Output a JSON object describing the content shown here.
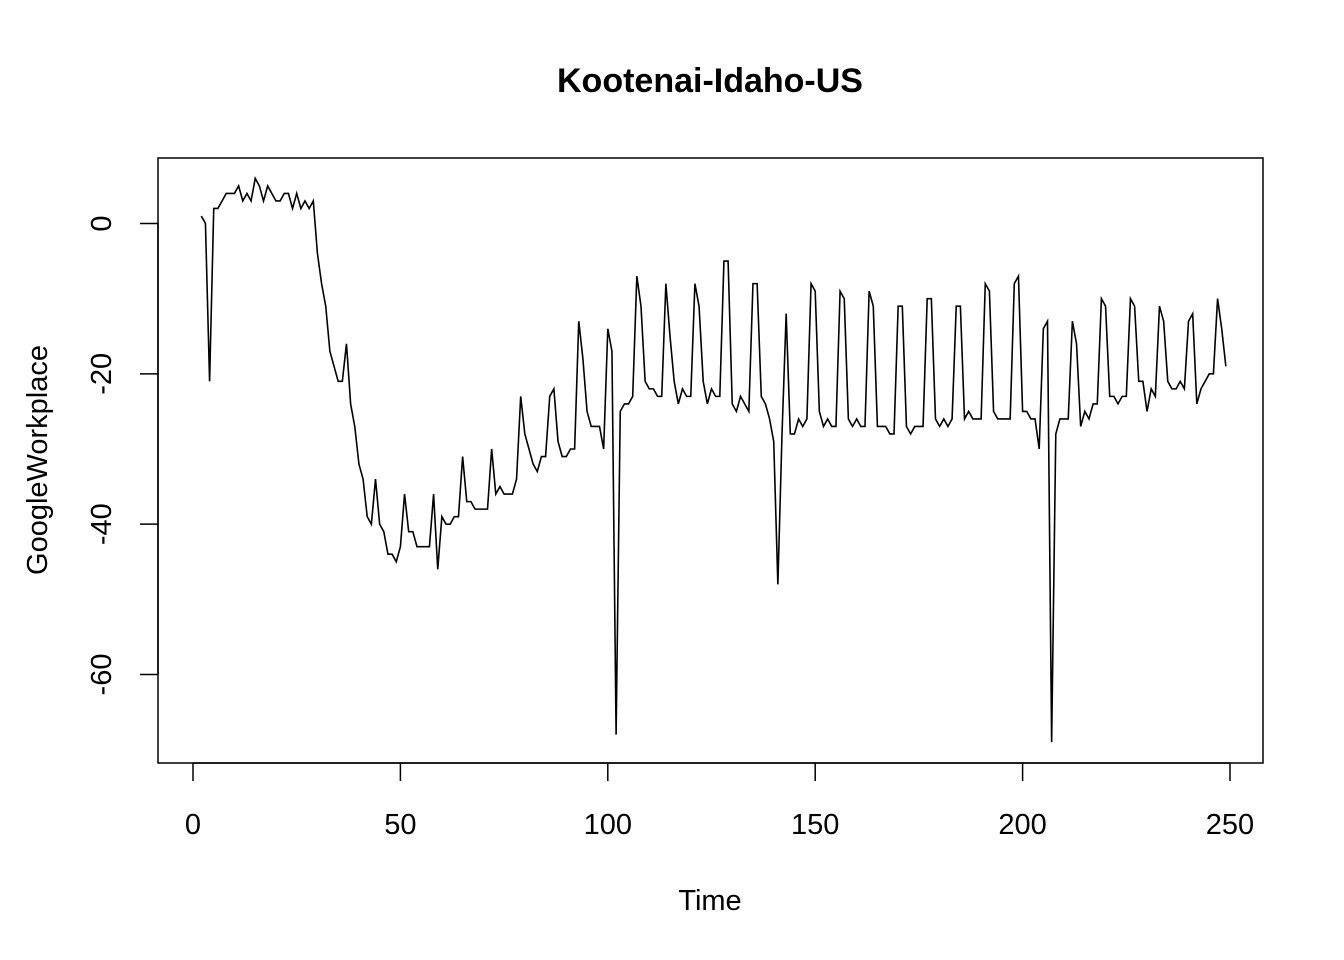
{
  "chart_data": {
    "type": "line",
    "title": "Kootenai-Idaho-US",
    "xlabel": "Time",
    "ylabel": "GoogleWorkplace",
    "xlim": [
      0,
      250
    ],
    "ylim": [
      -70,
      5
    ],
    "xticks": [
      0,
      50,
      100,
      150,
      200,
      250
    ],
    "yticks": [
      0,
      -20,
      -40,
      -60
    ],
    "grid": false,
    "line_color": "#000000",
    "series": [
      {
        "values": [
          1,
          0,
          -21,
          2,
          2,
          3,
          4,
          4,
          4,
          5,
          3,
          4,
          3,
          6,
          5,
          3,
          5,
          4,
          3,
          3,
          4,
          4,
          2,
          4,
          2,
          3,
          2,
          3,
          -4,
          -8,
          -11,
          -17,
          -19,
          -21,
          -21,
          -16,
          -24,
          -27,
          -32,
          -34,
          -39,
          -40,
          -34,
          -40,
          -41,
          -44,
          -44,
          -45,
          -43,
          -36,
          -41,
          -41,
          -43,
          -43,
          -43,
          -43,
          -36,
          -46,
          -39,
          -40,
          -40,
          -39,
          -39,
          -31,
          -37,
          -37,
          -38,
          -38,
          -38,
          -38,
          -30,
          -36,
          -35,
          -36,
          -36,
          -36,
          -34,
          -23,
          -28,
          -30,
          -32,
          -33,
          -31,
          -31,
          -23,
          -22,
          -29,
          -31,
          -31,
          -30,
          -30,
          -13,
          -18,
          -25,
          -27,
          -27,
          -27,
          -30,
          -14,
          -17,
          -68,
          -25,
          -24,
          -24,
          -23,
          -7,
          -11,
          -21,
          -22,
          -22,
          -23,
          -23,
          -8,
          -15,
          -21,
          -24,
          -22,
          -23,
          -23,
          -8,
          -11,
          -21,
          -24,
          -22,
          -23,
          -23,
          -5,
          -5,
          -24,
          -25,
          -23,
          -24,
          -25,
          -8,
          -8,
          -23,
          -24,
          -26,
          -29,
          -48,
          -28,
          -12,
          -28,
          -28,
          -26,
          -27,
          -26,
          -8,
          -9,
          -25,
          -27,
          -26,
          -27,
          -27,
          -9,
          -10,
          -26,
          -27,
          -26,
          -27,
          -27,
          -9,
          -11,
          -27,
          -27,
          -27,
          -28,
          -28,
          -11,
          -11,
          -27,
          -28,
          -27,
          -27,
          -27,
          -10,
          -10,
          -26,
          -27,
          -26,
          -27,
          -26,
          -11,
          -11,
          -26,
          -25,
          -26,
          -26,
          -26,
          -8,
          -9,
          -25,
          -26,
          -26,
          -26,
          -26,
          -8,
          -7,
          -25,
          -25,
          -26,
          -26,
          -30,
          -14,
          -13,
          -69,
          -28,
          -26,
          -26,
          -26,
          -13,
          -16,
          -27,
          -25,
          -26,
          -24,
          -24,
          -10,
          -11,
          -23,
          -23,
          -24,
          -23,
          -23,
          -10,
          -11,
          -21,
          -21,
          -25,
          -22,
          -23,
          -11,
          -13,
          -21,
          -22,
          -22,
          -21,
          -22,
          -13,
          -12,
          -24,
          -22,
          -21,
          -20,
          -20,
          -10,
          -14,
          -19
        ]
      }
    ]
  }
}
